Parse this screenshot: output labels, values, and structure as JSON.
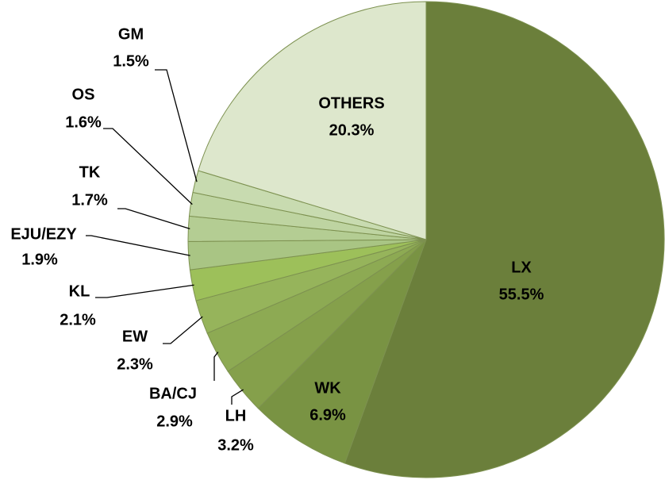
{
  "chart_data": {
    "type": "pie",
    "categories": [
      "LX",
      "WK",
      "LH",
      "BA/CJ",
      "EW",
      "KL",
      "EJU/EZY",
      "TK",
      "OS",
      "GM",
      "OTHERS"
    ],
    "values": [
      55.5,
      6.9,
      3.2,
      2.9,
      2.3,
      2.1,
      1.9,
      1.7,
      1.6,
      1.5,
      20.3
    ],
    "value_labels": [
      "55.5%",
      "6.9%",
      "3.2%",
      "2.9%",
      "2.3%",
      "2.1%",
      "1.9%",
      "1.7%",
      "1.6%",
      "1.5%",
      "20.3%"
    ],
    "colors": [
      "#6b7f3b",
      "#799343",
      "#85a04b",
      "#8daa53",
      "#96b45b",
      "#9dc05a",
      "#a9c584",
      "#b4cd93",
      "#bed4a1",
      "#c8dbb0",
      "#dde7cc"
    ]
  }
}
